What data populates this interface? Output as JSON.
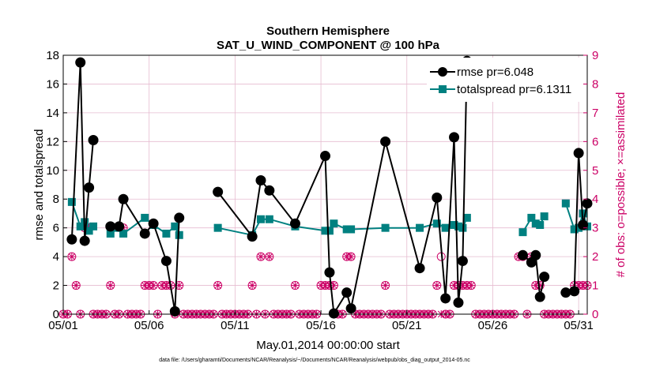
{
  "chart_data": {
    "type": "line",
    "title": "Southern Hemisphere",
    "subtitle": "SAT_U_WIND_COMPONENT @ 100 hPa",
    "xlabel": "May.01,2014 00:00:00 start",
    "ylabel": "rmse and totalspread",
    "y2label": "# of obs: o=possible; ×=assimilated",
    "footnote": "data file: /Users/gharamti/Documents/NCAR/Reanalysis/~/Documents/NCAR/Reanalysis/webpub/obs_diag_output_2014-05.nc",
    "xlim": [
      1,
      31.5
    ],
    "ylim": [
      0,
      18
    ],
    "y2lim": [
      0,
      9
    ],
    "yticks": [
      0,
      2,
      4,
      6,
      8,
      10,
      12,
      14,
      16,
      18
    ],
    "y2ticks": [
      0,
      1,
      2,
      3,
      4,
      5,
      6,
      7,
      8,
      9
    ],
    "xticks": [
      1,
      6,
      11,
      16,
      21,
      26,
      31
    ],
    "xticklabels": [
      "05/01",
      "05/06",
      "05/11",
      "05/16",
      "05/21",
      "05/26",
      "05/31"
    ],
    "legend_position": "top-right",
    "grid": true,
    "colors": {
      "rmse": "#000000",
      "spread": "#008080",
      "obs": "#cc0066"
    },
    "series": [
      {
        "name": "rmse pr=6.048",
        "key": "rmse",
        "x": [
          1.5,
          2.0,
          2.25,
          2.5,
          2.75,
          3.0,
          3.75,
          4.25,
          4.5,
          5.75,
          6.25,
          7.0,
          7.5,
          7.75,
          8.0,
          10.0,
          12.0,
          12.5,
          13.0,
          14.5,
          16.25,
          16.5,
          16.75,
          17.5,
          17.75,
          19.75,
          21.75,
          22.75,
          23.25,
          23.75,
          24.0,
          24.25,
          24.5,
          24.75,
          27.75,
          28.25,
          28.5,
          28.75,
          29.0,
          29.25,
          30.25,
          30.75,
          31.0,
          31.25,
          31.5
        ],
        "y": [
          5.2,
          17.5,
          5.1,
          8.8,
          12.1,
          null,
          6.1,
          6.1,
          8.0,
          5.6,
          6.3,
          3.7,
          0.2,
          6.7,
          null,
          8.5,
          5.4,
          9.3,
          8.6,
          6.3,
          11.0,
          2.9,
          0.05,
          1.5,
          0.4,
          12.0,
          3.2,
          8.1,
          1.1,
          12.3,
          0.8,
          3.7,
          17.6,
          null,
          4.1,
          3.6,
          4.1,
          1.2,
          2.6,
          null,
          1.5,
          1.6,
          11.2,
          6.2,
          7.7
        ]
      },
      {
        "name": "totalspread pr=6.1311",
        "key": "spread",
        "x": [
          1.5,
          2.0,
          2.25,
          2.5,
          2.75,
          3.0,
          3.75,
          4.25,
          4.5,
          5.75,
          6.25,
          7.0,
          7.5,
          7.75,
          8.0,
          10.0,
          12.0,
          12.5,
          13.0,
          14.5,
          16.25,
          16.5,
          16.75,
          17.5,
          17.75,
          19.75,
          21.75,
          22.75,
          23.25,
          23.75,
          24.0,
          24.25,
          24.5,
          24.75,
          27.75,
          28.25,
          28.5,
          28.75,
          29.0,
          29.25,
          30.25,
          30.75,
          31.0,
          31.25,
          31.5
        ],
        "y": [
          7.8,
          6.1,
          6.4,
          5.8,
          6.1,
          null,
          5.6,
          6.0,
          5.6,
          6.7,
          6.2,
          5.6,
          6.1,
          5.5,
          null,
          6.0,
          5.5,
          6.6,
          6.6,
          6.1,
          5.8,
          5.8,
          6.3,
          5.9,
          5.9,
          6.0,
          6.0,
          6.3,
          6.0,
          6.2,
          6.1,
          6.0,
          6.7,
          null,
          5.7,
          6.7,
          6.3,
          6.2,
          6.8,
          null,
          7.7,
          5.9,
          6.0,
          7.0,
          6.1
        ]
      }
    ],
    "obs": {
      "x": [
        1.0,
        1.25,
        1.5,
        1.75,
        2.0,
        2.25,
        2.5,
        2.75,
        3.0,
        3.25,
        3.5,
        3.75,
        4.0,
        4.25,
        4.5,
        4.75,
        5.0,
        5.25,
        5.5,
        5.75,
        6.0,
        6.25,
        6.5,
        6.75,
        7.0,
        7.25,
        7.5,
        7.75,
        8.0,
        8.25,
        8.5,
        8.75,
        9.0,
        9.25,
        9.5,
        9.75,
        10.0,
        10.25,
        10.5,
        10.75,
        11.0,
        11.25,
        11.5,
        11.75,
        12.0,
        12.25,
        12.5,
        12.75,
        13.0,
        13.25,
        13.5,
        13.75,
        14.0,
        14.25,
        14.5,
        14.75,
        15.0,
        15.25,
        15.5,
        15.75,
        16.0,
        16.25,
        16.5,
        16.75,
        17.0,
        17.25,
        17.5,
        17.75,
        18.0,
        18.25,
        18.5,
        18.75,
        19.0,
        19.25,
        19.5,
        19.75,
        20.0,
        20.25,
        20.5,
        20.75,
        21.0,
        21.25,
        21.5,
        21.75,
        22.0,
        22.25,
        22.5,
        22.75,
        23.0,
        23.25,
        23.5,
        23.75,
        24.0,
        24.25,
        24.5,
        24.75,
        25.0,
        25.25,
        25.5,
        25.75,
        26.0,
        26.25,
        26.5,
        26.75,
        27.0,
        27.25,
        27.5,
        27.75,
        28.0,
        28.25,
        28.5,
        28.75,
        29.0,
        29.25,
        29.5,
        29.75,
        30.0,
        30.25,
        30.5,
        30.75,
        31.0,
        31.25,
        31.5
      ],
      "possible": [
        0,
        0,
        2,
        1,
        0,
        3,
        3,
        0,
        0,
        0,
        0,
        1,
        0,
        0,
        3,
        0,
        0,
        0,
        0,
        1,
        1,
        1,
        0,
        1,
        1,
        1,
        0,
        1,
        0,
        0,
        0,
        0,
        0,
        0,
        0,
        0,
        1,
        0,
        0,
        0,
        0,
        0,
        0,
        0,
        1,
        0,
        2,
        0,
        2,
        0,
        0,
        0,
        0,
        0,
        1,
        0,
        0,
        0,
        0,
        0,
        1,
        1,
        1,
        1,
        0,
        0,
        2,
        2,
        0,
        0,
        0,
        0,
        0,
        0,
        0,
        1,
        0,
        0,
        0,
        0,
        0,
        0,
        0,
        0,
        0,
        0,
        0,
        1,
        2,
        0,
        0,
        1,
        1,
        1,
        1,
        1,
        0,
        0,
        0,
        0,
        0,
        0,
        0,
        0,
        0,
        0,
        2,
        2,
        0,
        2,
        1,
        1,
        0,
        0,
        0,
        0,
        0,
        0,
        0,
        1,
        1,
        1,
        1,
        1,
        2
      ],
      "assimilated": [
        0,
        0,
        2,
        1,
        0,
        3,
        3,
        0,
        0,
        0,
        0,
        1,
        0,
        0,
        3,
        0,
        0,
        0,
        0,
        1,
        1,
        1,
        0,
        1,
        1,
        1,
        0,
        1,
        0,
        0,
        0,
        0,
        0,
        0,
        0,
        0,
        1,
        0,
        0,
        0,
        0,
        0,
        0,
        0,
        1,
        0,
        2,
        0,
        2,
        0,
        0,
        0,
        0,
        0,
        1,
        0,
        0,
        0,
        0,
        0,
        1,
        1,
        1,
        1,
        0,
        0,
        2,
        2,
        0,
        0,
        0,
        0,
        0,
        0,
        0,
        1,
        0,
        0,
        0,
        0,
        0,
        0,
        0,
        0,
        0,
        0,
        0,
        1,
        0,
        0,
        0,
        1,
        1,
        1,
        1,
        1,
        0,
        0,
        0,
        0,
        0,
        0,
        0,
        0,
        0,
        0,
        2,
        2,
        0,
        2,
        1,
        1,
        0,
        0,
        0,
        0,
        0,
        0,
        0,
        1,
        1,
        1,
        1,
        1,
        2
      ]
    }
  }
}
